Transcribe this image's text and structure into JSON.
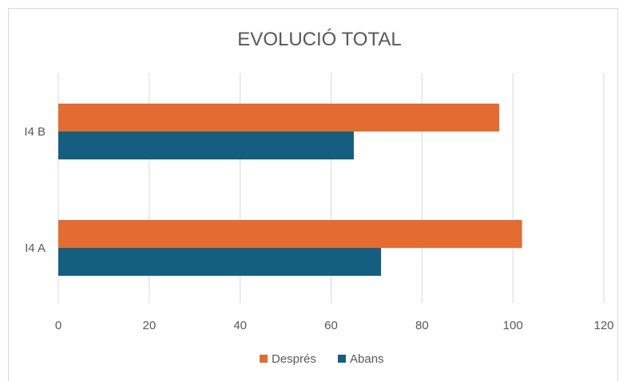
{
  "chart_data": {
    "type": "bar",
    "orientation": "horizontal",
    "title": "EVOLUCIÓ TOTAL",
    "xlabel": "",
    "ylabel": "",
    "categories": [
      "I4 B",
      "I4 A"
    ],
    "series": [
      {
        "name": "Després",
        "values": [
          97,
          102
        ],
        "color": "#E46C30"
      },
      {
        "name": "Abans",
        "values": [
          65,
          71
        ],
        "color": "#145F80"
      }
    ],
    "xlim": [
      0,
      120
    ],
    "x_ticks": [
      "0",
      "20",
      "40",
      "60",
      "80",
      "100",
      "120"
    ],
    "grid": true,
    "legend_position": "bottom"
  }
}
